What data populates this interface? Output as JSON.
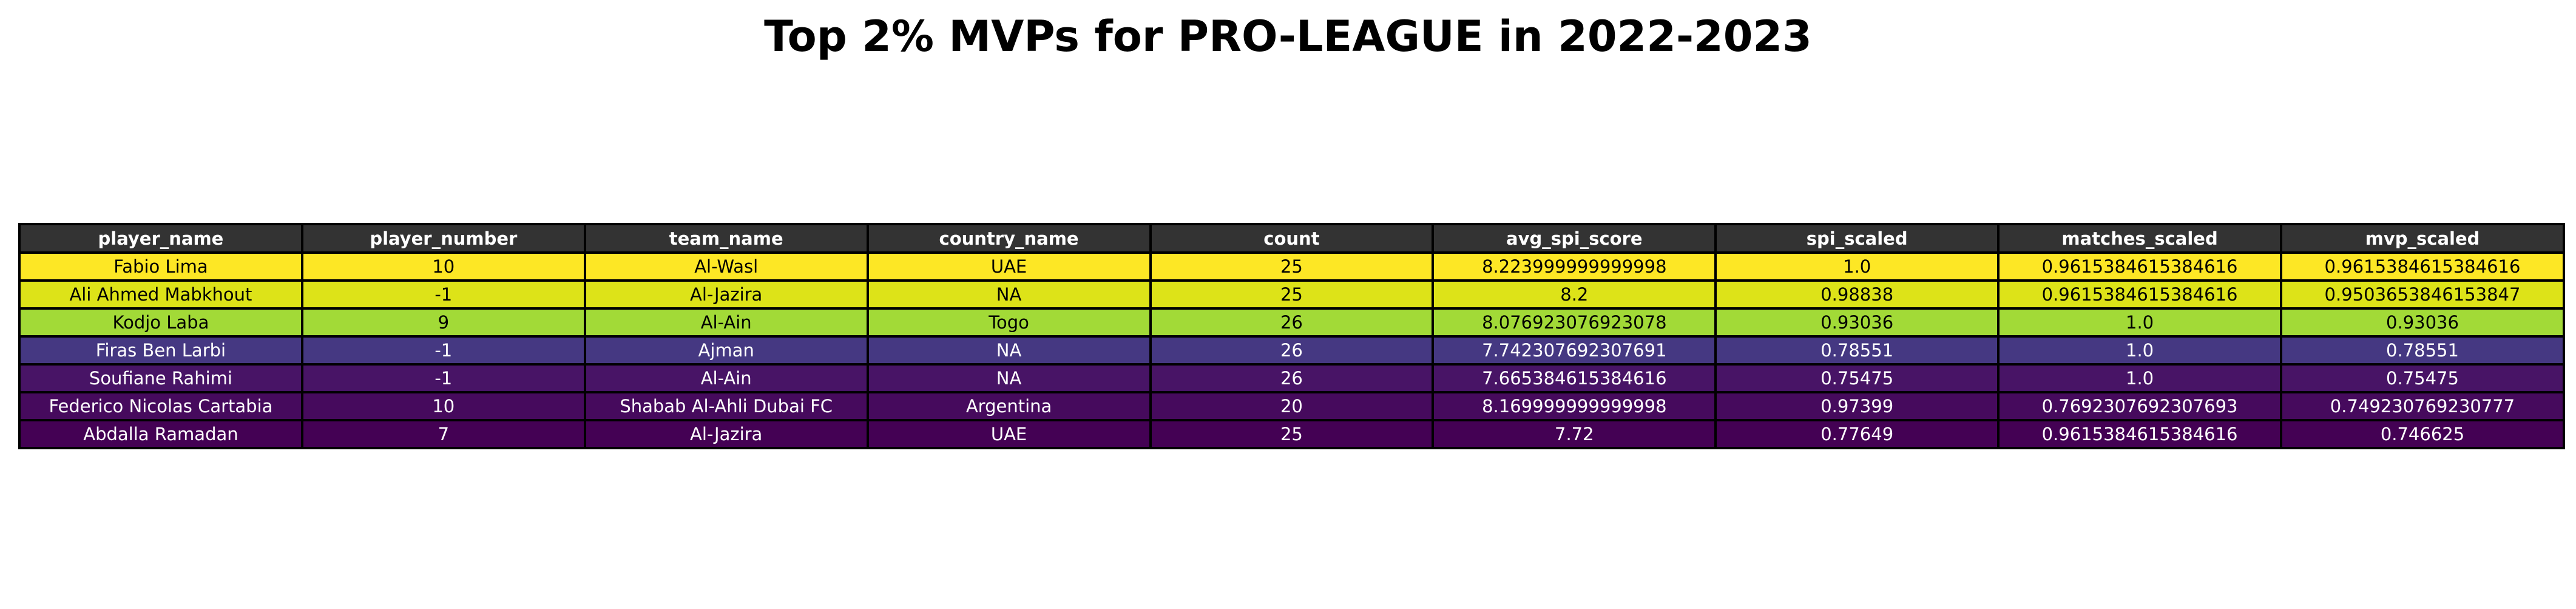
{
  "chart_data": {
    "type": "table",
    "title": "Top 2% MVPs for PRO-LEAGUE in 2022-2023",
    "columns": [
      "player_name",
      "player_number",
      "team_name",
      "country_name",
      "count",
      "avg_spi_score",
      "spi_scaled",
      "matches_scaled",
      "mvp_scaled"
    ],
    "rows": [
      {
        "cells": [
          "Fabio Lima",
          "10",
          "Al-Wasl",
          "UAE",
          "25",
          "8.223999999999998",
          "1.0",
          "0.9615384615384616",
          "0.9615384615384616"
        ],
        "bg": "#fde725",
        "fg": "#000000"
      },
      {
        "cells": [
          "Ali Ahmed Mabkhout",
          "-1",
          "Al-Jazira",
          "NA",
          "25",
          "8.2",
          "0.98838",
          "0.9615384615384616",
          "0.9503653846153847"
        ],
        "bg": "#dde318",
        "fg": "#000000"
      },
      {
        "cells": [
          "Kodjo Laba",
          "9",
          "Al-Ain",
          "Togo",
          "26",
          "8.076923076923078",
          "0.93036",
          "1.0",
          "0.93036"
        ],
        "bg": "#a2da37",
        "fg": "#000000"
      },
      {
        "cells": [
          "Firas Ben Larbi",
          "-1",
          "Ajman",
          "NA",
          "26",
          "7.742307692307691",
          "0.78551",
          "1.0",
          "0.78551"
        ],
        "bg": "#453882",
        "fg": "#ffffff"
      },
      {
        "cells": [
          "Soufiane Rahimi",
          "-1",
          "Al-Ain",
          "NA",
          "26",
          "7.665384615384616",
          "0.75475",
          "1.0",
          "0.75475"
        ],
        "bg": "#481466",
        "fg": "#ffffff"
      },
      {
        "cells": [
          "Federico Nicolas Cartabia",
          "10",
          "Shabab Al-Ahli Dubai FC",
          "Argentina",
          "20",
          "8.169999999999998",
          "0.97399",
          "0.7692307692307693",
          "0.749230769230777"
        ],
        "bg": "#460a5d",
        "fg": "#ffffff"
      },
      {
        "cells": [
          "Abdalla Ramadan",
          "7",
          "Al-Jazira",
          "UAE",
          "25",
          "7.72",
          "0.77649",
          "0.9615384615384616",
          "0.746625"
        ],
        "bg": "#440154",
        "fg": "#ffffff"
      }
    ]
  },
  "colors": {
    "header_bg": "#333333",
    "header_text": "#ffffff",
    "border": "#000000"
  }
}
